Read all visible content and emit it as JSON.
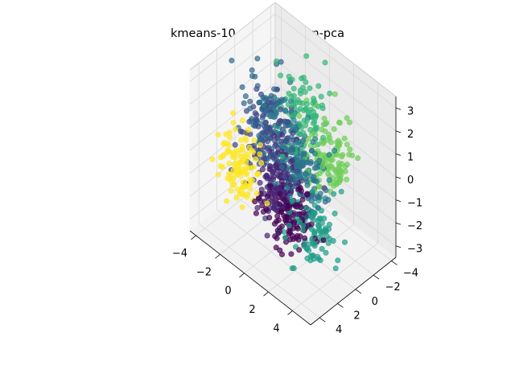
{
  "chart_data": {
    "type": "scatter",
    "projection": "3d",
    "title": "kmeans-10-clusters-3dim-pca",
    "xlabel": "",
    "ylabel": "",
    "zlabel": "",
    "xlim": [
      -4.5,
      5.5
    ],
    "ylim": [
      -4.5,
      5.0
    ],
    "zlim": [
      -3.5,
      3.5
    ],
    "xticks": [
      -4,
      -2,
      0,
      2,
      4
    ],
    "yticks": [
      -4,
      -2,
      0,
      2,
      4
    ],
    "zticks": [
      -3,
      -2,
      -1,
      0,
      1,
      2,
      3
    ],
    "xtick_labels": [
      "−4",
      "−2",
      "0",
      "2",
      "4"
    ],
    "ytick_labels": [
      "−4",
      "−2",
      "0",
      "2",
      "4"
    ],
    "ztick_labels": [
      "−3",
      "−2",
      "−1",
      "0",
      "1",
      "2",
      "3"
    ],
    "grid": true,
    "legend": "none",
    "series": [
      {
        "color": "#fde725",
        "center": [
          -1.2,
          3.8,
          0.3
        ],
        "spread": [
          0.8,
          0.7,
          0.8
        ],
        "count": 110
      },
      {
        "color": "#440154",
        "center": [
          1.5,
          2.0,
          -1.3
        ],
        "spread": [
          1.0,
          0.8,
          0.8
        ],
        "count": 120
      },
      {
        "color": "#482878",
        "center": [
          0.6,
          1.8,
          -0.6
        ],
        "spread": [
          1.0,
          0.9,
          0.8
        ],
        "count": 120
      },
      {
        "color": "#3e4989",
        "center": [
          -0.8,
          1.0,
          0.6
        ],
        "spread": [
          1.0,
          0.9,
          0.9
        ],
        "count": 120
      },
      {
        "color": "#31688e",
        "center": [
          -1.6,
          0.5,
          1.5
        ],
        "spread": [
          0.9,
          0.9,
          0.8
        ],
        "count": 80
      },
      {
        "color": "#26828e",
        "center": [
          0.2,
          -0.2,
          0.3
        ],
        "spread": [
          1.0,
          0.9,
          0.9
        ],
        "count": 110
      },
      {
        "color": "#1f9e89",
        "center": [
          2.8,
          1.2,
          -1.6
        ],
        "spread": [
          0.9,
          0.8,
          0.7
        ],
        "count": 100
      },
      {
        "color": "#35b779",
        "center": [
          0.2,
          -1.4,
          1.6
        ],
        "spread": [
          0.9,
          0.9,
          0.8
        ],
        "count": 90
      },
      {
        "color": "#6ece58",
        "center": [
          1.6,
          -2.2,
          0.0
        ],
        "spread": [
          0.8,
          0.8,
          0.9
        ],
        "count": 120
      },
      {
        "color": "#2d708e",
        "center": [
          1.0,
          0.6,
          0.0
        ],
        "spread": [
          1.0,
          0.9,
          0.8
        ],
        "count": 110
      }
    ]
  }
}
